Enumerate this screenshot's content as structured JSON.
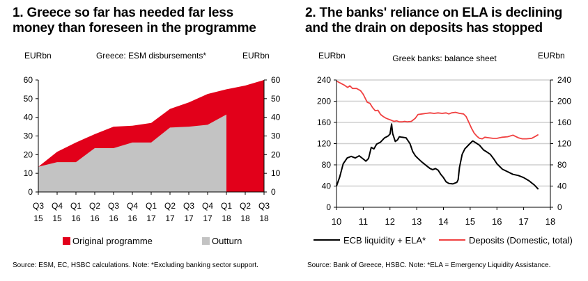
{
  "chart_data": [
    {
      "type": "area",
      "title_line1": "1. Greece so far has needed far less",
      "title_line2": "money than foreseen in the programme",
      "subtitle": "Greece: ESM disbursements*",
      "ylabel_left": "EURbn",
      "ylabel_right": "EURbn",
      "ylim": [
        0,
        60
      ],
      "yticks": [
        0,
        10,
        20,
        30,
        40,
        50,
        60
      ],
      "yticks_labels": [
        "0",
        "10",
        "20",
        "30",
        "40",
        "50",
        "60"
      ],
      "categories": [
        {
          "q": "Q3",
          "y": "15"
        },
        {
          "q": "Q4",
          "y": "15"
        },
        {
          "q": "Q1",
          "y": "16"
        },
        {
          "q": "Q2",
          "y": "16"
        },
        {
          "q": "Q3",
          "y": "16"
        },
        {
          "q": "Q4",
          "y": "16"
        },
        {
          "q": "Q1",
          "y": "17"
        },
        {
          "q": "Q2",
          "y": "17"
        },
        {
          "q": "Q3",
          "y": "17"
        },
        {
          "q": "Q4",
          "y": "17"
        },
        {
          "q": "Q1",
          "y": "18"
        },
        {
          "q": "Q2",
          "y": "18"
        },
        {
          "q": "Q3",
          "y": "18"
        }
      ],
      "series": [
        {
          "name": "Original programme",
          "color": "#e2001a",
          "values": [
            13.5,
            21.5,
            26.5,
            31,
            35,
            35.5,
            37,
            44.5,
            48,
            52.5,
            55,
            57,
            60
          ]
        },
        {
          "name": "Outturn",
          "color": "#c3c3c3",
          "values": [
            13.5,
            16,
            16,
            23.5,
            23.5,
            26.5,
            26.5,
            34.5,
            35,
            36,
            41.5,
            null,
            null
          ]
        }
      ],
      "source": "Source: ESM, EC, HSBC calculations. Note: *Excluding banking sector support."
    },
    {
      "type": "line",
      "title_line1": "2. The banks' reliance on ELA is declining",
      "title_line2": "and the drain on deposits has stopped",
      "subtitle": "Greek banks: balance sheet",
      "ylabel_left": "EURbn",
      "ylabel_right": "EURbn",
      "ylim": [
        0,
        240
      ],
      "yticks": [
        0,
        40,
        80,
        120,
        160,
        200,
        240
      ],
      "yticks_labels": [
        "0",
        "40",
        "80",
        "120",
        "160",
        "200",
        "240"
      ],
      "xlim": [
        10,
        18
      ],
      "xticks": [
        10,
        11,
        12,
        13,
        14,
        15,
        16,
        17,
        18
      ],
      "xticks_labels": [
        "10",
        "11",
        "12",
        "13",
        "14",
        "15",
        "16",
        "17",
        "18"
      ],
      "series": [
        {
          "name": "ECB liquidity + ELA*",
          "color": "#000000",
          "points": [
            [
              10,
              40
            ],
            [
              10.12,
              57
            ],
            [
              10.25,
              82
            ],
            [
              10.4,
              93
            ],
            [
              10.55,
              96
            ],
            [
              10.7,
              93
            ],
            [
              10.85,
              97
            ],
            [
              11,
              91
            ],
            [
              11.1,
              87
            ],
            [
              11.2,
              92
            ],
            [
              11.3,
              113
            ],
            [
              11.4,
              110
            ],
            [
              11.5,
              119
            ],
            [
              11.65,
              123
            ],
            [
              11.8,
              131
            ],
            [
              11.92,
              134
            ],
            [
              12,
              138
            ],
            [
              12.06,
              157
            ],
            [
              12.1,
              139
            ],
            [
              12.2,
              124
            ],
            [
              12.28,
              127
            ],
            [
              12.35,
              133
            ],
            [
              12.45,
              132
            ],
            [
              12.6,
              131
            ],
            [
              12.75,
              120
            ],
            [
              12.85,
              105
            ],
            [
              12.95,
              97
            ],
            [
              13.05,
              92
            ],
            [
              13.2,
              85
            ],
            [
              13.35,
              79
            ],
            [
              13.5,
              73
            ],
            [
              13.6,
              71
            ],
            [
              13.7,
              73
            ],
            [
              13.8,
              70
            ],
            [
              13.9,
              62
            ],
            [
              14,
              56
            ],
            [
              14.1,
              48
            ],
            [
              14.2,
              45
            ],
            [
              14.35,
              44
            ],
            [
              14.5,
              47
            ],
            [
              14.55,
              52
            ],
            [
              14.6,
              75
            ],
            [
              14.7,
              100
            ],
            [
              14.8,
              110
            ],
            [
              14.95,
              118
            ],
            [
              15.05,
              123
            ],
            [
              15.1,
              125
            ],
            [
              15.2,
              122
            ],
            [
              15.35,
              117
            ],
            [
              15.5,
              108
            ],
            [
              15.6,
              105
            ],
            [
              15.75,
              100
            ],
            [
              15.9,
              90
            ],
            [
              16,
              82
            ],
            [
              16.2,
              72
            ],
            [
              16.4,
              67
            ],
            [
              16.6,
              62
            ],
            [
              16.8,
              60
            ],
            [
              17,
              56
            ],
            [
              17.2,
              50
            ],
            [
              17.4,
              42
            ],
            [
              17.55,
              34
            ]
          ]
        },
        {
          "name": "Deposits (Domestic, total)",
          "color": "#f04040",
          "points": [
            [
              10,
              238
            ],
            [
              10.15,
              234
            ],
            [
              10.3,
              230
            ],
            [
              10.42,
              226
            ],
            [
              10.5,
              229
            ],
            [
              10.6,
              224
            ],
            [
              10.75,
              224
            ],
            [
              10.9,
              220
            ],
            [
              11,
              213
            ],
            [
              11.05,
              208
            ],
            [
              11.15,
              198
            ],
            [
              11.25,
              196
            ],
            [
              11.35,
              188
            ],
            [
              11.45,
              182
            ],
            [
              11.55,
              183
            ],
            [
              11.65,
              175
            ],
            [
              11.75,
              171
            ],
            [
              11.85,
              168
            ],
            [
              11.95,
              166
            ],
            [
              12.05,
              164
            ],
            [
              12.15,
              162
            ],
            [
              12.25,
              163
            ],
            [
              12.35,
              161
            ],
            [
              12.45,
              161
            ],
            [
              12.55,
              162
            ],
            [
              12.65,
              161
            ],
            [
              12.8,
              162
            ],
            [
              12.95,
              168
            ],
            [
              13.05,
              175
            ],
            [
              13.2,
              176
            ],
            [
              13.35,
              177
            ],
            [
              13.5,
              178
            ],
            [
              13.65,
              177
            ],
            [
              13.8,
              178
            ],
            [
              13.95,
              177
            ],
            [
              14.1,
              178
            ],
            [
              14.2,
              176
            ],
            [
              14.3,
              178
            ],
            [
              14.45,
              179
            ],
            [
              14.6,
              177
            ],
            [
              14.75,
              176
            ],
            [
              14.85,
              171
            ],
            [
              14.95,
              160
            ],
            [
              15.05,
              149
            ],
            [
              15.15,
              140
            ],
            [
              15.25,
              134
            ],
            [
              15.35,
              130
            ],
            [
              15.45,
              129
            ],
            [
              15.55,
              132
            ],
            [
              15.7,
              131
            ],
            [
              15.85,
              130
            ],
            [
              16,
              130
            ],
            [
              16.2,
              132
            ],
            [
              16.4,
              133
            ],
            [
              16.6,
              136
            ],
            [
              16.8,
              131
            ],
            [
              16.95,
              129
            ],
            [
              17.1,
              129
            ],
            [
              17.3,
              130
            ],
            [
              17.45,
              134
            ],
            [
              17.55,
              137
            ]
          ]
        }
      ],
      "source": "Source: Bank of Greece, HSBC. Note: *ELA = Emergency Liquidity Assistance."
    }
  ]
}
